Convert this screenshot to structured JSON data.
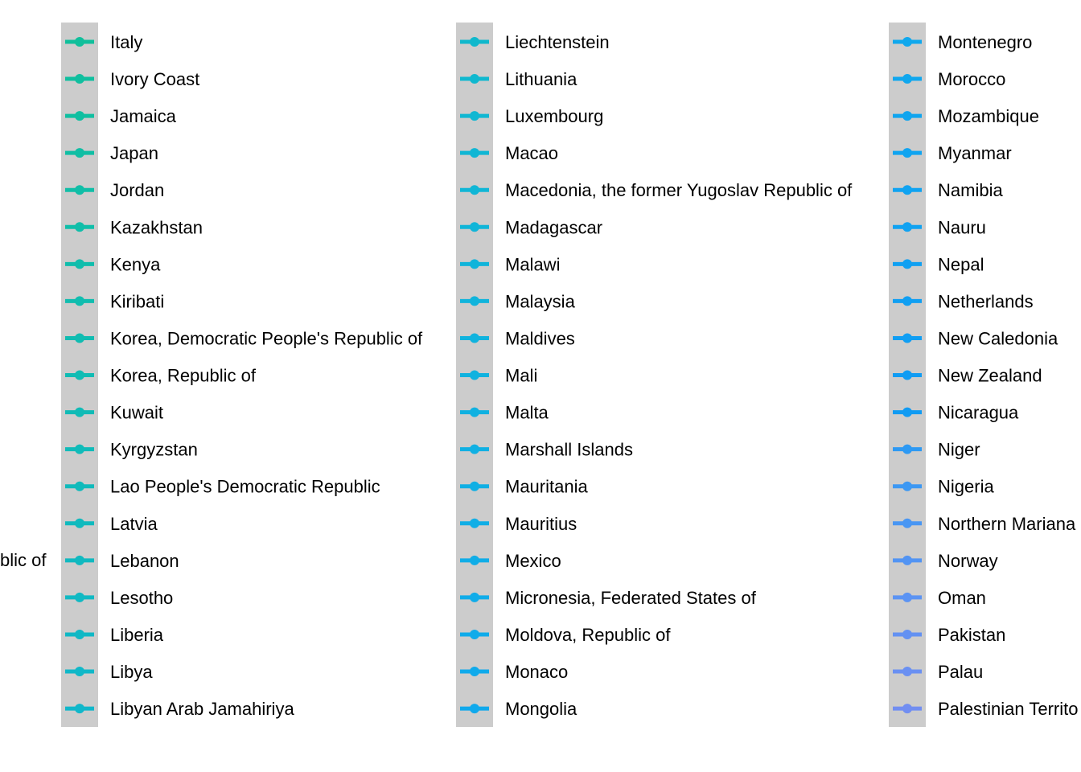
{
  "chart_data": {
    "type": "legend",
    "key_background": "#cccccc",
    "overflow_fragment": "blic of",
    "columns": [
      {
        "items": [
          {
            "label": "Italy",
            "color": "#10bf9b"
          },
          {
            "label": "Ivory Coast",
            "color": "#10bf9f"
          },
          {
            "label": "Jamaica",
            "color": "#10bfa1"
          },
          {
            "label": "Japan",
            "color": "#10bea4"
          },
          {
            "label": "Jordan",
            "color": "#10bea7"
          },
          {
            "label": "Kazakhstan",
            "color": "#10bea9"
          },
          {
            "label": "Kenya",
            "color": "#10bdac"
          },
          {
            "label": "Kiribati",
            "color": "#10bdaf"
          },
          {
            "label": "Korea, Democratic People's Republic of",
            "color": "#10bcb1"
          },
          {
            "label": "Korea, Republic of",
            "color": "#10bcb4"
          },
          {
            "label": "Kuwait",
            "color": "#10bbb6"
          },
          {
            "label": "Kyrgyzstan",
            "color": "#10bbb9"
          },
          {
            "label": "Lao People's Democratic Republic",
            "color": "#10babb"
          },
          {
            "label": "Latvia",
            "color": "#10babe"
          },
          {
            "label": "Lebanon",
            "color": "#10b9c0"
          },
          {
            "label": "Lesotho",
            "color": "#10b9c3"
          },
          {
            "label": "Liberia",
            "color": "#10b8c5"
          },
          {
            "label": "Libya",
            "color": "#10b8c8"
          },
          {
            "label": "Libyan Arab Jamahiriya",
            "color": "#10b7ca"
          }
        ]
      },
      {
        "items": [
          {
            "label": "Liechtenstein",
            "color": "#10b8cc"
          },
          {
            "label": "Lithuania",
            "color": "#10b8cf"
          },
          {
            "label": "Luxembourg",
            "color": "#10b7d2"
          },
          {
            "label": "Macao",
            "color": "#10b6d4"
          },
          {
            "label": "Macedonia, the former Yugoslav Republic of",
            "color": "#10b6d6"
          },
          {
            "label": "Madagascar",
            "color": "#10b5d8"
          },
          {
            "label": "Malawi",
            "color": "#10b4da"
          },
          {
            "label": "Malaysia",
            "color": "#10b4dc"
          },
          {
            "label": "Maldives",
            "color": "#10b3de"
          },
          {
            "label": "Mali",
            "color": "#10b2df"
          },
          {
            "label": "Malta",
            "color": "#10b1e1"
          },
          {
            "label": "Marshall Islands",
            "color": "#10b0e3"
          },
          {
            "label": "Mauritania",
            "color": "#10afe4"
          },
          {
            "label": "Mauritius",
            "color": "#10aee6"
          },
          {
            "label": "Mexico",
            "color": "#10ade7"
          },
          {
            "label": "Micronesia, Federated States of",
            "color": "#10ace9"
          },
          {
            "label": "Moldova, Republic of",
            "color": "#10abea"
          },
          {
            "label": "Monaco",
            "color": "#10aaeb"
          },
          {
            "label": "Mongolia",
            "color": "#10a9ec"
          }
        ]
      },
      {
        "items": [
          {
            "label": "Montenegro",
            "color": "#10a8ed"
          },
          {
            "label": "Morocco",
            "color": "#10a7ee"
          },
          {
            "label": "Mozambique",
            "color": "#10a5ef"
          },
          {
            "label": "Myanmar",
            "color": "#10a4f0"
          },
          {
            "label": "Namibia",
            "color": "#10a3f1"
          },
          {
            "label": "Nauru",
            "color": "#10a2f1"
          },
          {
            "label": "Nepal",
            "color": "#10a0f2"
          },
          {
            "label": "Netherlands",
            "color": "#109ff2"
          },
          {
            "label": "New Caledonia",
            "color": "#109ef3"
          },
          {
            "label": "New Zealand",
            "color": "#109cf3"
          },
          {
            "label": "Nicaragua",
            "color": "#109bf3"
          },
          {
            "label": "Niger",
            "color": "#2d99f3"
          },
          {
            "label": "Nigeria",
            "color": "#3c98f3"
          },
          {
            "label": "Northern Mariana",
            "color": "#4896f3"
          },
          {
            "label": "Norway",
            "color": "#5294f3"
          },
          {
            "label": "Oman",
            "color": "#5b93f3"
          },
          {
            "label": "Pakistan",
            "color": "#6391f2"
          },
          {
            "label": "Palau",
            "color": "#6a90f2"
          },
          {
            "label": "Palestinian Territo",
            "color": "#718ef1"
          }
        ]
      }
    ]
  }
}
